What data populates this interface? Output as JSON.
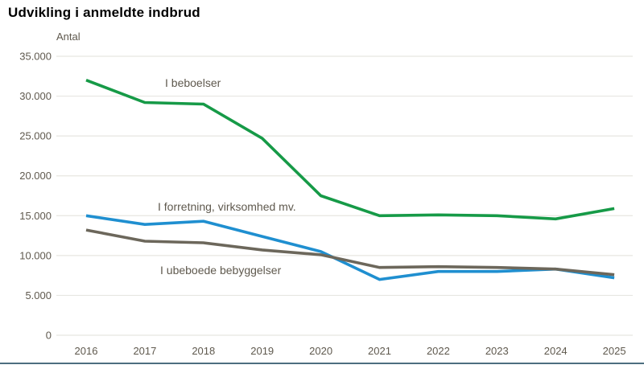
{
  "title": "Udvikling i anmeldte indbrud",
  "colors": {
    "background": "#ffffff",
    "title_text": "#000000",
    "axis_text": "#5f594e",
    "gridline": "#e7e6e1",
    "bottom_rule": "#4d6e80",
    "series_beboelser": "#169a47",
    "series_forretning": "#1f8fd0",
    "series_ubeboede": "#6c675b"
  },
  "chart_data": {
    "type": "line",
    "title": "Udvikling i anmeldte indbrud",
    "ylabel": "Antal",
    "xlabel": "",
    "ylim": [
      0,
      35000
    ],
    "grid": true,
    "legend_position": "inline-labels",
    "categories": [
      "2016",
      "2017",
      "2018",
      "2019",
      "2020",
      "2021",
      "2022",
      "2023",
      "2024",
      "2025"
    ],
    "y_ticks": {
      "values": [
        0,
        5000,
        10000,
        15000,
        20000,
        25000,
        30000,
        35000
      ],
      "labels": [
        "0",
        "5.000",
        "10.000",
        "15.000",
        "20.000",
        "25.000",
        "30.000",
        "35.000"
      ]
    },
    "series": [
      {
        "name": "I forretning, virksomhed mv.",
        "color_key": "series_forretning",
        "values": [
          15000,
          13900,
          14300,
          12400,
          10500,
          7000,
          8000,
          8000,
          8300,
          7200
        ]
      },
      {
        "name": "I ubeboede bebyggelser",
        "color_key": "series_ubeboede",
        "values": [
          13200,
          11800,
          11600,
          10700,
          10100,
          8500,
          8600,
          8500,
          8300,
          7600
        ]
      },
      {
        "name": "I beboelser",
        "color_key": "series_beboelser",
        "values": [
          32000,
          29200,
          29000,
          24700,
          17500,
          15000,
          15100,
          15000,
          14600,
          15900
        ]
      }
    ],
    "annotations": [
      {
        "text": "I beboelser",
        "x": 205,
        "y": 108
      },
      {
        "text": "I forretning, virksomhed mv.",
        "x": 196,
        "y": 262
      },
      {
        "text": "I ubeboede bebyggelser",
        "x": 199,
        "y": 341
      }
    ]
  }
}
